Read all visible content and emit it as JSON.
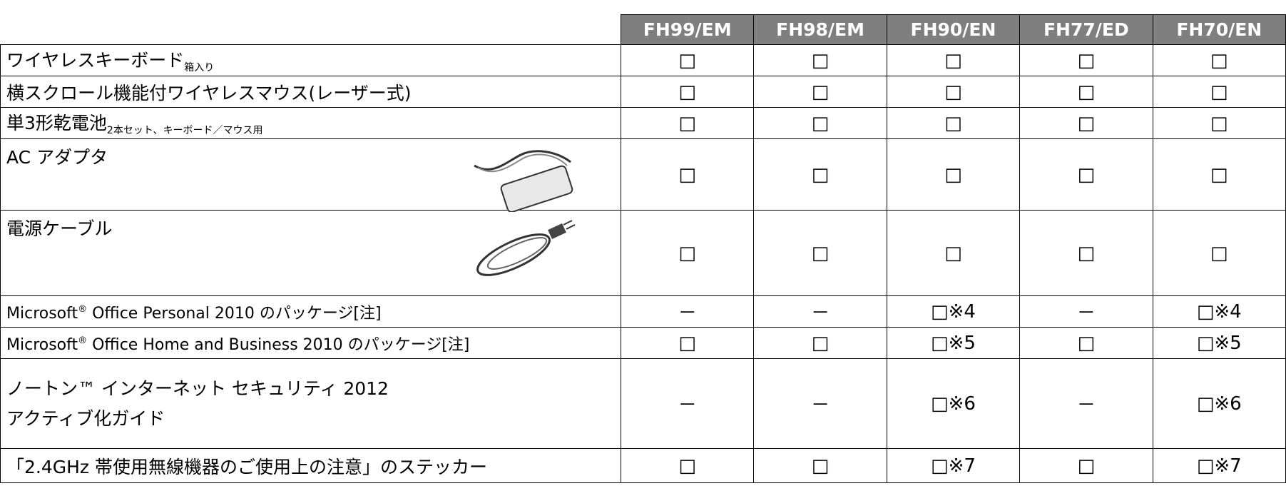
{
  "table": {
    "header": [
      "FH99/EM",
      "FH98/EM",
      "FH90/EN",
      "FH77/ED",
      "FH70/EN"
    ],
    "rows": [
      {
        "label": "ワイヤレスキーボード",
        "note": "箱入り",
        "cells": [
          "□",
          "□",
          "□",
          "□",
          "□"
        ]
      },
      {
        "label": "横スクロール機能付ワイヤレスマウス(レーザー式)",
        "cells": [
          "□",
          "□",
          "□",
          "□",
          "□"
        ]
      },
      {
        "label": "単3形乾電池",
        "note": "2本セット、キーボード／マウス用",
        "cells": [
          "□",
          "□",
          "□",
          "□",
          "□"
        ]
      },
      {
        "label": "AC アダプタ",
        "cells": [
          "□",
          "□",
          "□",
          "□",
          "□"
        ]
      },
      {
        "label": "電源ケーブル",
        "cells": [
          "□",
          "□",
          "□",
          "□",
          "□"
        ]
      },
      {
        "label": "Microsoft",
        "mark": "®",
        "label2": " Office Personal 2010 のパッケージ[注]",
        "cells": [
          "－",
          "－",
          "□※4",
          "－",
          "□※4"
        ]
      },
      {
        "label": "Microsoft",
        "mark": "®",
        "label2": " Office Home and Business 2010 のパッケージ[注]",
        "cells": [
          "□",
          "□",
          "□※5",
          "□",
          "□※5"
        ]
      },
      {
        "lines": [
          "ノートン™ インターネット セキュリティ 2012",
          "アクティブ化ガイド"
        ],
        "cells": [
          "－",
          "－",
          "□※6",
          "－",
          "□※6"
        ]
      },
      {
        "label": "「2.4GHz 帯使用無線機器のご使用上の注意」のステッカー",
        "cells": [
          "□",
          "□",
          "□※7",
          "□",
          "□※7"
        ]
      }
    ]
  }
}
